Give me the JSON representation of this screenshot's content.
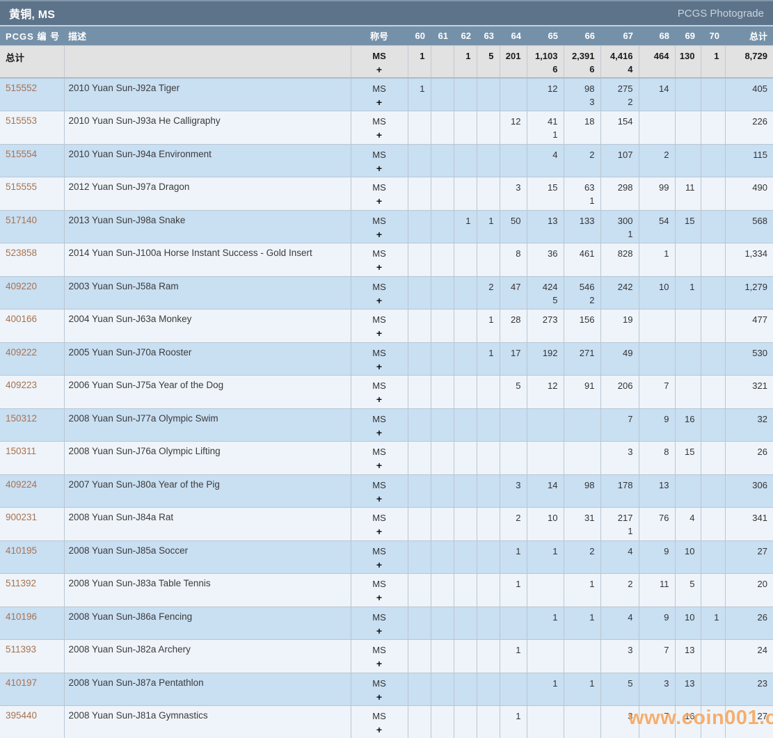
{
  "header": {
    "title": "黄铜, MS",
    "photograde": "PCGS Photograde"
  },
  "table": {
    "col_pcgs": "PCGS 编 号",
    "col_desc": "描述",
    "col_designation": "称号",
    "col_total": "总计",
    "grade_columns": [
      "60",
      "61",
      "62",
      "63",
      "64",
      "65",
      "66",
      "67",
      "68",
      "69",
      "70"
    ],
    "designation": {
      "line1": "MS",
      "line2": "+"
    },
    "totals": {
      "label": "总计",
      "ms": [
        "1",
        "",
        "1",
        "5",
        "201",
        "1,103",
        "2,391",
        "4,416",
        "464",
        "130",
        "1"
      ],
      "plus": [
        "",
        "",
        "",
        "",
        "",
        "6",
        "6",
        "4",
        "",
        "",
        ""
      ],
      "total": "8,729"
    },
    "rows": [
      {
        "pcgs": "515552",
        "desc": "2010 Yuan Sun-J92a Tiger",
        "ms": [
          "1",
          "",
          "",
          "",
          "",
          "12",
          "98",
          "275",
          "14",
          "",
          ""
        ],
        "plus": [
          "",
          "",
          "",
          "",
          "",
          "",
          "3",
          "2",
          "",
          "",
          ""
        ],
        "total": "405"
      },
      {
        "pcgs": "515553",
        "desc": "2010 Yuan Sun-J93a He Calligraphy",
        "ms": [
          "",
          "",
          "",
          "",
          "12",
          "41",
          "18",
          "154",
          "",
          "",
          ""
        ],
        "plus": [
          "",
          "",
          "",
          "",
          "",
          "1",
          "",
          "",
          "",
          "",
          ""
        ],
        "total": "226"
      },
      {
        "pcgs": "515554",
        "desc": "2010 Yuan Sun-J94a Environment",
        "ms": [
          "",
          "",
          "",
          "",
          "",
          "4",
          "2",
          "107",
          "2",
          "",
          ""
        ],
        "plus": [
          "",
          "",
          "",
          "",
          "",
          "",
          "",
          "",
          "",
          "",
          ""
        ],
        "total": "115"
      },
      {
        "pcgs": "515555",
        "desc": "2012 Yuan Sun-J97a Dragon",
        "ms": [
          "",
          "",
          "",
          "",
          "3",
          "15",
          "63",
          "298",
          "99",
          "11",
          ""
        ],
        "plus": [
          "",
          "",
          "",
          "",
          "",
          "",
          "1",
          "",
          "",
          "",
          ""
        ],
        "total": "490"
      },
      {
        "pcgs": "517140",
        "desc": "2013 Yuan Sun-J98a Snake",
        "ms": [
          "",
          "",
          "1",
          "1",
          "50",
          "13",
          "133",
          "300",
          "54",
          "15",
          ""
        ],
        "plus": [
          "",
          "",
          "",
          "",
          "",
          "",
          "",
          "1",
          "",
          "",
          ""
        ],
        "total": "568"
      },
      {
        "pcgs": "523858",
        "desc": "2014 Yuan Sun-J100a Horse Instant Success - Gold Insert",
        "ms": [
          "",
          "",
          "",
          "",
          "8",
          "36",
          "461",
          "828",
          "1",
          "",
          ""
        ],
        "plus": [
          "",
          "",
          "",
          "",
          "",
          "",
          "",
          "",
          "",
          "",
          ""
        ],
        "total": "1,334"
      },
      {
        "pcgs": "409220",
        "desc": "2003 Yuan Sun-J58a Ram",
        "ms": [
          "",
          "",
          "",
          "2",
          "47",
          "424",
          "546",
          "242",
          "10",
          "1",
          ""
        ],
        "plus": [
          "",
          "",
          "",
          "",
          "",
          "5",
          "2",
          "",
          "",
          "",
          ""
        ],
        "total": "1,279"
      },
      {
        "pcgs": "400166",
        "desc": "2004 Yuan Sun-J63a Monkey",
        "ms": [
          "",
          "",
          "",
          "1",
          "28",
          "273",
          "156",
          "19",
          "",
          "",
          ""
        ],
        "plus": [
          "",
          "",
          "",
          "",
          "",
          "",
          "",
          "",
          "",
          "",
          ""
        ],
        "total": "477"
      },
      {
        "pcgs": "409222",
        "desc": "2005 Yuan Sun-J70a Rooster",
        "ms": [
          "",
          "",
          "",
          "1",
          "17",
          "192",
          "271",
          "49",
          "",
          "",
          ""
        ],
        "plus": [
          "",
          "",
          "",
          "",
          "",
          "",
          "",
          "",
          "",
          "",
          ""
        ],
        "total": "530"
      },
      {
        "pcgs": "409223",
        "desc": "2006 Yuan Sun-J75a Year of the Dog",
        "ms": [
          "",
          "",
          "",
          "",
          "5",
          "12",
          "91",
          "206",
          "7",
          "",
          ""
        ],
        "plus": [
          "",
          "",
          "",
          "",
          "",
          "",
          "",
          "",
          "",
          "",
          ""
        ],
        "total": "321"
      },
      {
        "pcgs": "150312",
        "desc": "2008 Yuan Sun-J77a Olympic Swim",
        "ms": [
          "",
          "",
          "",
          "",
          "",
          "",
          "",
          "7",
          "9",
          "16",
          ""
        ],
        "plus": [
          "",
          "",
          "",
          "",
          "",
          "",
          "",
          "",
          "",
          "",
          ""
        ],
        "total": "32"
      },
      {
        "pcgs": "150311",
        "desc": "2008 Yuan Sun-J76a Olympic Lifting",
        "ms": [
          "",
          "",
          "",
          "",
          "",
          "",
          "",
          "3",
          "8",
          "15",
          ""
        ],
        "plus": [
          "",
          "",
          "",
          "",
          "",
          "",
          "",
          "",
          "",
          "",
          ""
        ],
        "total": "26"
      },
      {
        "pcgs": "409224",
        "desc": "2007 Yuan Sun-J80a Year of the Pig",
        "ms": [
          "",
          "",
          "",
          "",
          "3",
          "14",
          "98",
          "178",
          "13",
          "",
          ""
        ],
        "plus": [
          "",
          "",
          "",
          "",
          "",
          "",
          "",
          "",
          "",
          "",
          ""
        ],
        "total": "306"
      },
      {
        "pcgs": "900231",
        "desc": "2008 Yuan Sun-J84a Rat",
        "ms": [
          "",
          "",
          "",
          "",
          "2",
          "10",
          "31",
          "217",
          "76",
          "4",
          ""
        ],
        "plus": [
          "",
          "",
          "",
          "",
          "",
          "",
          "",
          "1",
          "",
          "",
          ""
        ],
        "total": "341"
      },
      {
        "pcgs": "410195",
        "desc": "2008 Yuan Sun-J85a Soccer",
        "ms": [
          "",
          "",
          "",
          "",
          "1",
          "1",
          "2",
          "4",
          "9",
          "10",
          ""
        ],
        "plus": [
          "",
          "",
          "",
          "",
          "",
          "",
          "",
          "",
          "",
          "",
          ""
        ],
        "total": "27"
      },
      {
        "pcgs": "511392",
        "desc": "2008 Yuan Sun-J83a Table Tennis",
        "ms": [
          "",
          "",
          "",
          "",
          "1",
          "",
          "1",
          "2",
          "11",
          "5",
          ""
        ],
        "plus": [
          "",
          "",
          "",
          "",
          "",
          "",
          "",
          "",
          "",
          "",
          ""
        ],
        "total": "20"
      },
      {
        "pcgs": "410196",
        "desc": "2008 Yuan Sun-J86a Fencing",
        "ms": [
          "",
          "",
          "",
          "",
          "",
          "1",
          "1",
          "4",
          "9",
          "10",
          "1"
        ],
        "plus": [
          "",
          "",
          "",
          "",
          "",
          "",
          "",
          "",
          "",
          "",
          ""
        ],
        "total": "26"
      },
      {
        "pcgs": "511393",
        "desc": "2008 Yuan Sun-J82a Archery",
        "ms": [
          "",
          "",
          "",
          "",
          "1",
          "",
          "",
          "3",
          "7",
          "13",
          ""
        ],
        "plus": [
          "",
          "",
          "",
          "",
          "",
          "",
          "",
          "",
          "",
          "",
          ""
        ],
        "total": "24"
      },
      {
        "pcgs": "410197",
        "desc": "2008 Yuan Sun-J87a Pentathlon",
        "ms": [
          "",
          "",
          "",
          "",
          "",
          "1",
          "1",
          "5",
          "3",
          "13",
          ""
        ],
        "plus": [
          "",
          "",
          "",
          "",
          "",
          "",
          "",
          "",
          "",
          "",
          ""
        ],
        "total": "23"
      },
      {
        "pcgs": "395440",
        "desc": "2008 Yuan Sun-J81a Gymnastics",
        "ms": [
          "",
          "",
          "",
          "",
          "1",
          "",
          "",
          "3",
          "7",
          "16",
          ""
        ],
        "plus": [
          "",
          "",
          "",
          "",
          "",
          "",
          "",
          "",
          "",
          "",
          ""
        ],
        "total": "27"
      }
    ]
  },
  "watermark": "www.coin001.com",
  "colors": {
    "title_bar": "#5d7389",
    "column_header": "#7591a9",
    "row_blue": "#c9dff2",
    "row_light": "#eef4f9",
    "totals_row": "#e2e2e3",
    "pcgs_link": "#a9714f",
    "watermark": "#f7a55c"
  }
}
